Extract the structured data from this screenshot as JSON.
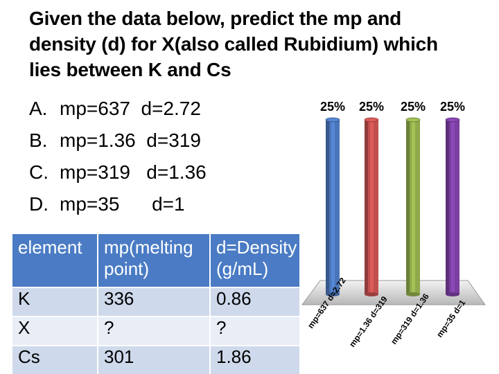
{
  "question": {
    "lines": [
      "Given the data below, predict the mp and",
      "density (d) for X(also called Rubidium) which",
      "lies between K and Cs"
    ]
  },
  "options": [
    {
      "letter": "A.",
      "text": "mp=637  d=2.72"
    },
    {
      "letter": "B.",
      "text": "mp=1.36  d=319"
    },
    {
      "letter": "C.",
      "text": "mp=319   d=1.36"
    },
    {
      "letter": "D.",
      "text": "mp=35      d=1"
    }
  ],
  "table": {
    "headers": [
      "element",
      "mp(melting point)",
      "d=Density (g/mL)"
    ],
    "rows": [
      [
        "K",
        "336",
        "0.86"
      ],
      [
        "X",
        "?",
        "?"
      ],
      [
        "Cs",
        "301",
        "1.86"
      ]
    ],
    "header_color": "#4a7bc4"
  },
  "chart_data": {
    "type": "bar",
    "categories": [
      "mp=637  d=2.72",
      "mp=1.36  d=319",
      "mp=319   d=1.36",
      "mp=35      d=1"
    ],
    "values": [
      25,
      25,
      25,
      25
    ],
    "value_labels": [
      "25%",
      "25%",
      "25%",
      "25%"
    ],
    "ylim": [
      0,
      100
    ],
    "bar_colors": [
      "#4a75b8",
      "#c0504d",
      "#8ea94a",
      "#7a3fa0"
    ],
    "grid": false,
    "three_d": true
  }
}
